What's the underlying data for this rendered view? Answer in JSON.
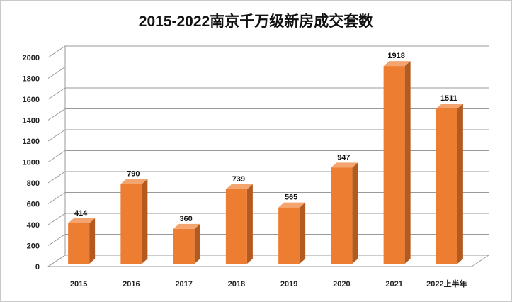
{
  "chart_data": {
    "type": "bar",
    "title": "2015-2022南京千万级新房成交套数",
    "categories": [
      "2015",
      "2016",
      "2017",
      "2018",
      "2019",
      "2020",
      "2021",
      "2022上半年"
    ],
    "values": [
      414,
      790,
      360,
      739,
      565,
      947,
      1918,
      1511
    ],
    "ylim": [
      0,
      2000
    ],
    "yticks": [
      0,
      200,
      400,
      600,
      800,
      1000,
      1200,
      1400,
      1600,
      1800,
      2000
    ],
    "grid": true,
    "legend": "none",
    "colors": {
      "bar_front": "#ED7D31",
      "bar_side": "#B25A1F",
      "bar_top": "#F4A46E"
    }
  }
}
